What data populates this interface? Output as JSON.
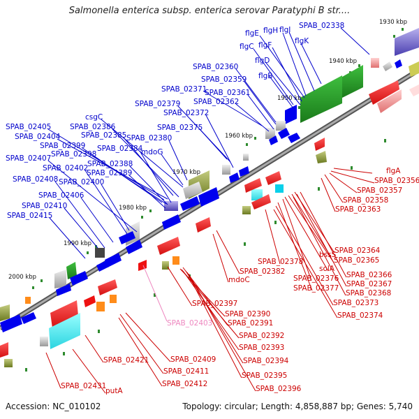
{
  "title": "Salmonella enterica subsp. enterica serovar Paratyphi B str....",
  "footer": {
    "accession": "Accession: NC_010102",
    "topology": "Topology: circular; Length: 4,858,887 bp; Genes: 5,740"
  },
  "colors": {
    "forward_label": "#0000cc",
    "reverse_label": "#cc0000",
    "pseudo_label": "#ee88c0",
    "backbone": "#888888"
  },
  "kbp_ticks": [
    "1930 kbp",
    "1940 kbp",
    "1950 kbp",
    "1960 kbp",
    "1970 kbp",
    "1980 kbp",
    "1990 kbp",
    "2000 kbp"
  ],
  "forward_genes": [
    "flgE",
    "flgH",
    "flgI",
    "SPAB_02338",
    "flgC",
    "flgF",
    "flgK",
    "flgD",
    "flgB",
    "SPAB_02360",
    "SPAB_02359",
    "SPAB_02371",
    "SPAB_02361",
    "SPAB_02362",
    "SPAB_02379",
    "SPAB_02372",
    "SPAB_02375",
    "csgC",
    "SPAB_02405",
    "SPAB_02386",
    "SPAB_02404",
    "SPAB_02385",
    "SPAB_02380",
    "SPAB_02399",
    "SPAB_02384",
    "mdoG",
    "SPAB_02398",
    "SPAB_02407",
    "SPAB_02388",
    "SPAB_02402",
    "SPAB_02389",
    "SPAB_02408",
    "SPAB_02400",
    "SPAB_02406",
    "SPAB_02410",
    "SPAB_02415"
  ],
  "reverse_genes": [
    "flgA",
    "SPAB_02356",
    "SPAB_02357",
    "SPAB_02358",
    "SPAB_02363",
    "SPAB_02364",
    "bssS",
    "SPAB_02365",
    "SPAB_02378",
    "solA",
    "SPAB_02366",
    "SPAB_02382",
    "SPAB_02376",
    "SPAB_02367",
    "mdoC",
    "SPAB_02377",
    "SPAB_02368",
    "SPAB_02373",
    "SPAB_02374",
    "SPAB_02397",
    "SPAB_02390",
    "SPAB_02391",
    "SPAB_02392",
    "SPAB_02393",
    "SPAB_02421",
    "SPAB_02409",
    "SPAB_02394",
    "SPAB_02411",
    "SPAB_02395",
    "SPAB_02412",
    "SPAB_02396",
    "SPAB_02431",
    "putA"
  ],
  "pseudo_genes": [
    "SPAB_02403"
  ]
}
